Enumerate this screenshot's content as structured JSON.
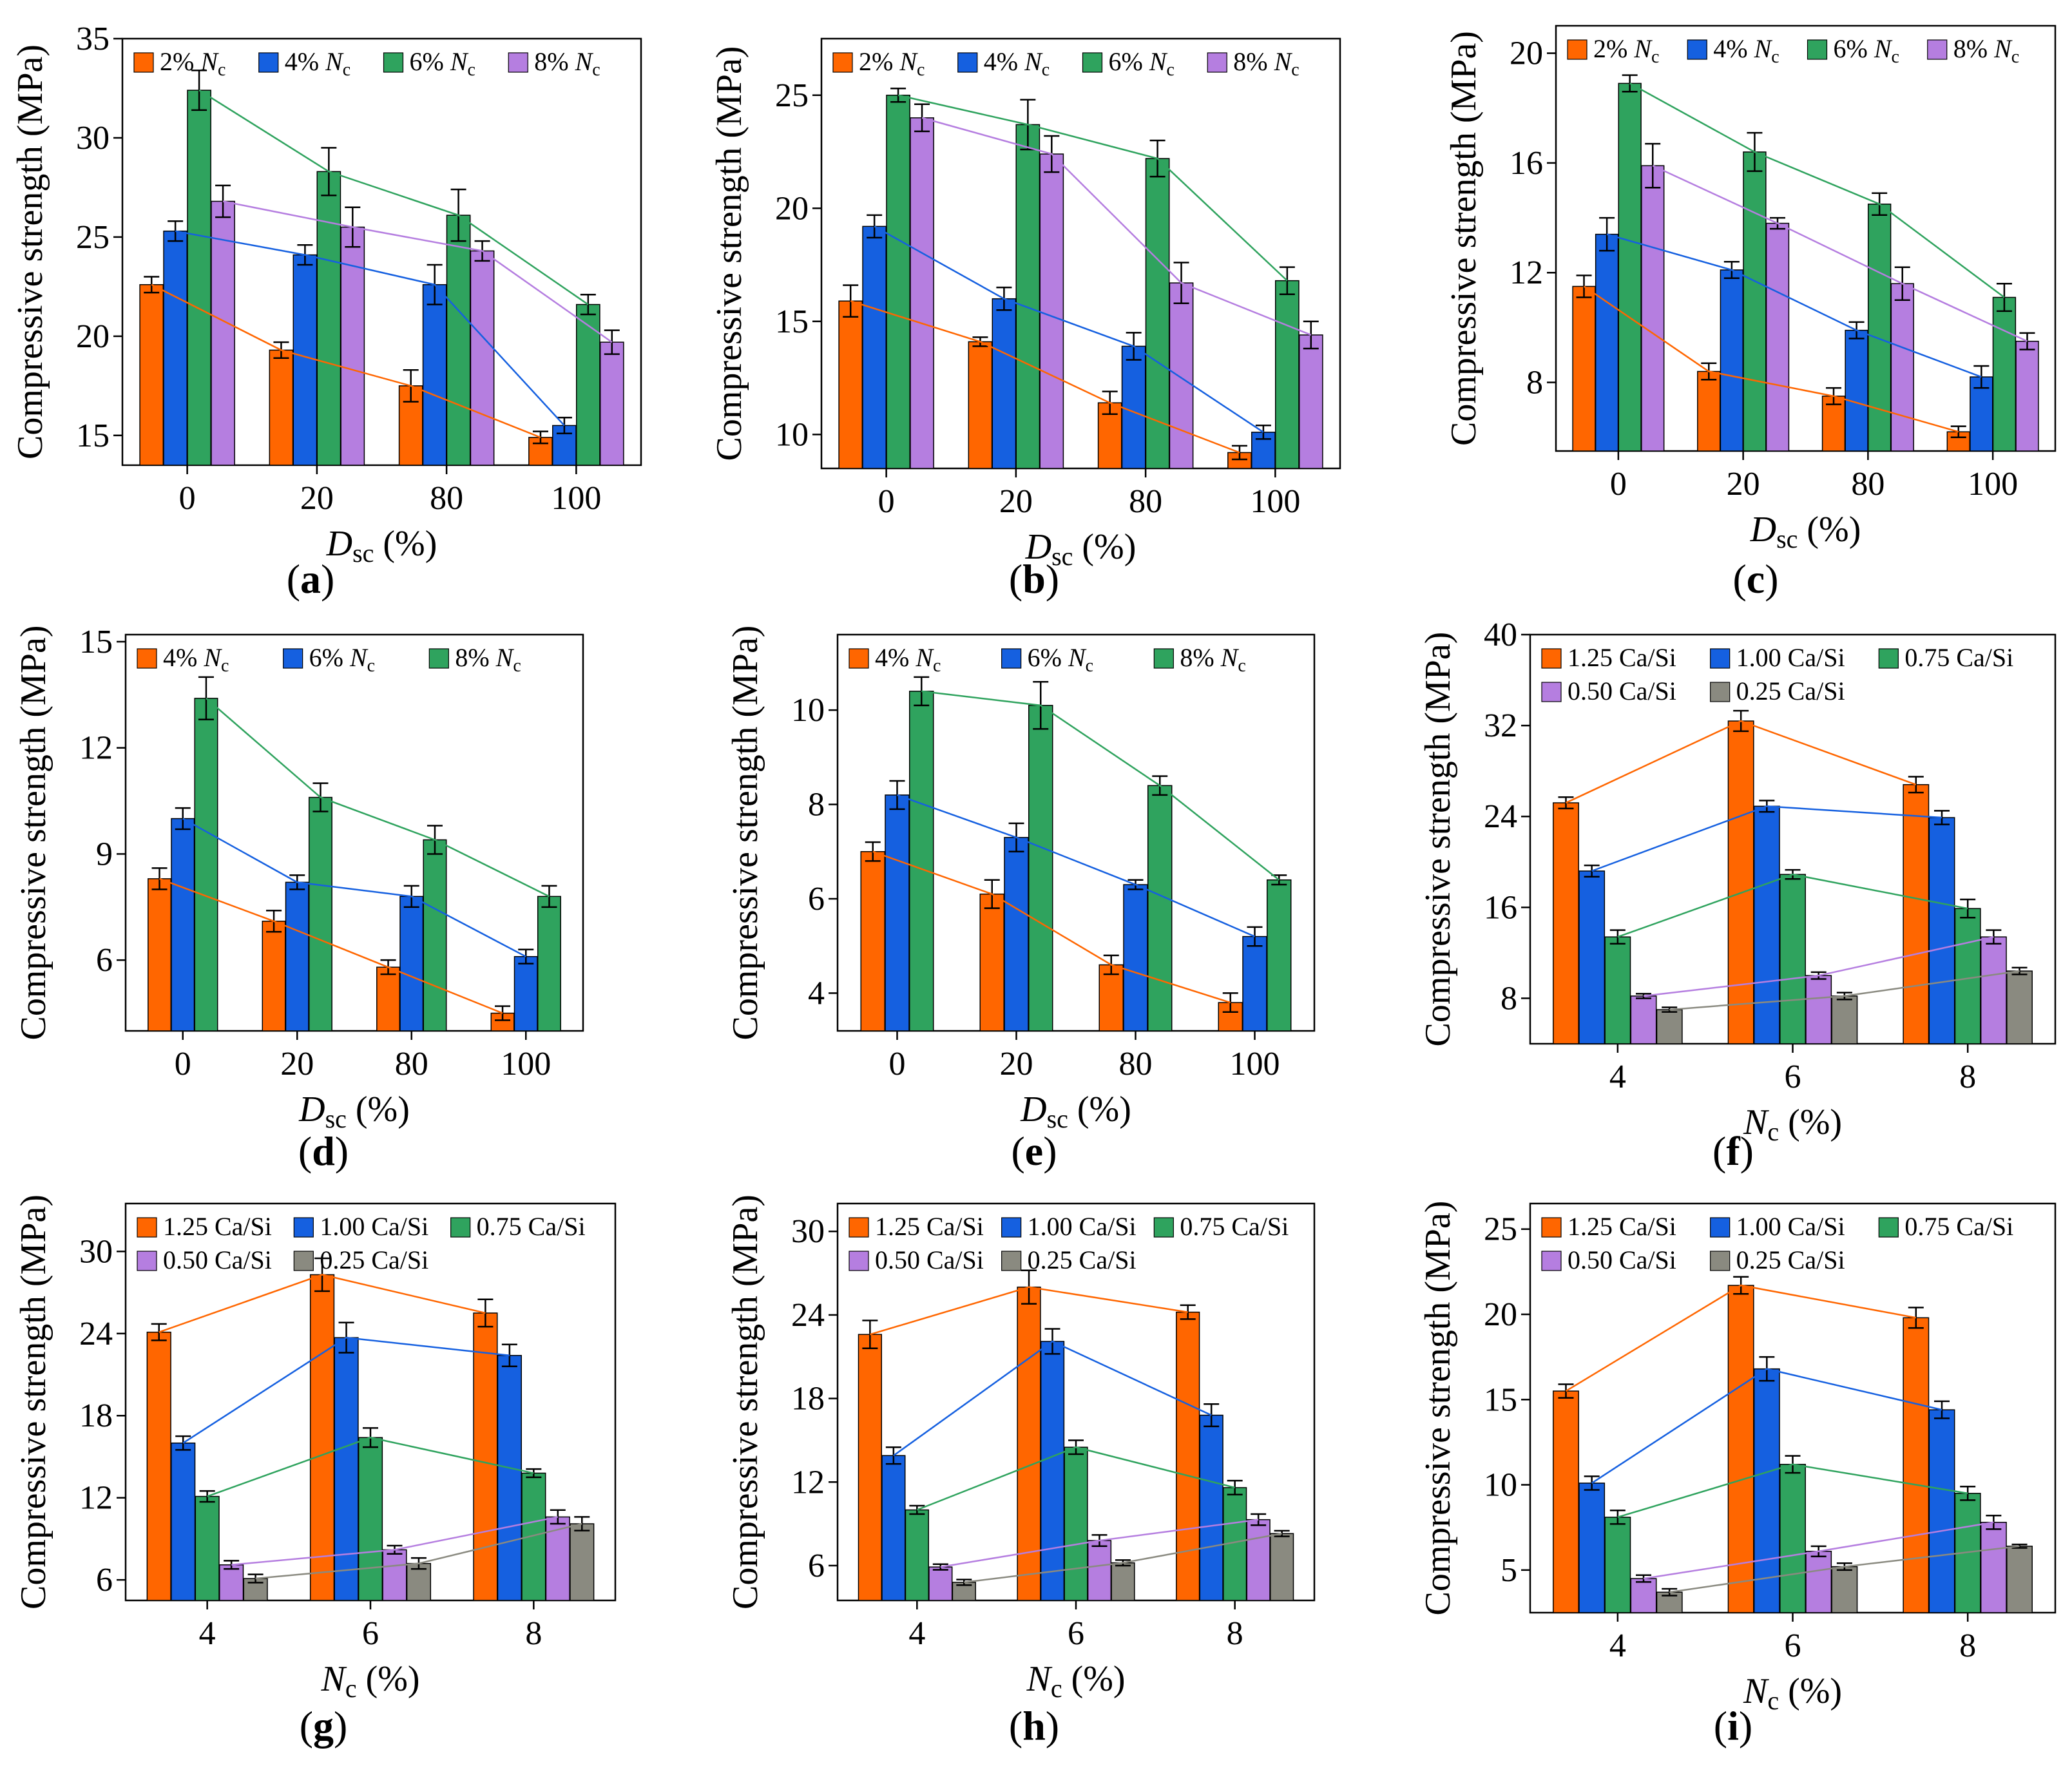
{
  "figure": {
    "panel_labels": [
      "(a)",
      "(b)",
      "(c)",
      "(d)",
      "(e)",
      "(f)",
      "(g)",
      "(h)",
      "(i)"
    ]
  },
  "colors": {
    "orange": "#ff6600",
    "blue": "#1560e0",
    "green": "#2fa35e",
    "purple": "#b57ee0",
    "gray": "#8a8a80"
  },
  "chart_data": [
    {
      "id": "a",
      "type": "bar",
      "ylabel": "Compressive strength (MPa)",
      "xlabel_main": "D",
      "xlabel_sub": "sc",
      "xlabel_unit": " (%)",
      "categories": [
        "0",
        "20",
        "80",
        "100"
      ],
      "ylim": [
        13.5,
        35
      ],
      "yticks": [
        "15",
        "20",
        "25",
        "30",
        "35"
      ],
      "ytick_values": [
        15,
        20,
        25,
        30,
        35
      ],
      "legend_ncol": 4,
      "series": [
        {
          "name": "2% Nc",
          "prefix": "2% ",
          "color": "orange",
          "values": [
            22.6,
            19.3,
            17.5,
            14.9
          ],
          "errors": [
            0.4,
            0.4,
            0.8,
            0.3
          ]
        },
        {
          "name": "4% Nc",
          "prefix": "4% ",
          "color": "blue",
          "values": [
            25.3,
            24.1,
            22.6,
            15.5
          ],
          "errors": [
            0.5,
            0.5,
            1.0,
            0.4
          ]
        },
        {
          "name": "6% Nc",
          "prefix": "6% ",
          "color": "green",
          "values": [
            32.4,
            28.3,
            26.1,
            21.6
          ],
          "errors": [
            1.0,
            1.2,
            1.3,
            0.5
          ]
        },
        {
          "name": "8% Nc",
          "prefix": "8% ",
          "color": "purple",
          "values": [
            26.8,
            25.5,
            24.3,
            19.7
          ],
          "errors": [
            0.8,
            1.0,
            0.5,
            0.6
          ]
        }
      ]
    },
    {
      "id": "b",
      "type": "bar",
      "ylabel": "Compressive strength (MPa)",
      "xlabel_main": "D",
      "xlabel_sub": "sc",
      "xlabel_unit": " (%)",
      "categories": [
        "0",
        "20",
        "80",
        "100"
      ],
      "ylim": [
        8.5,
        27.5
      ],
      "yticks": [
        "10",
        "15",
        "20",
        "25"
      ],
      "ytick_values": [
        10,
        15,
        20,
        25
      ],
      "legend_ncol": 4,
      "series": [
        {
          "name": "2% Nc",
          "prefix": "2% ",
          "color": "orange",
          "values": [
            15.9,
            14.1,
            11.4,
            9.2
          ],
          "errors": [
            0.7,
            0.2,
            0.5,
            0.3
          ]
        },
        {
          "name": "4% Nc",
          "prefix": "4% ",
          "color": "blue",
          "values": [
            19.2,
            16.0,
            13.9,
            10.1
          ],
          "errors": [
            0.5,
            0.5,
            0.6,
            0.3
          ]
        },
        {
          "name": "6% Nc",
          "prefix": "6% ",
          "color": "green",
          "values": [
            25.0,
            23.7,
            22.2,
            16.8
          ],
          "errors": [
            0.3,
            1.1,
            0.8,
            0.6
          ]
        },
        {
          "name": "8% Nc",
          "prefix": "8% ",
          "color": "purple",
          "values": [
            24.0,
            22.4,
            16.7,
            14.4
          ],
          "errors": [
            0.6,
            0.8,
            0.9,
            0.6
          ]
        }
      ]
    },
    {
      "id": "c",
      "type": "bar",
      "ylabel": "Compressive strength (MPa)",
      "xlabel_main": "D",
      "xlabel_sub": "sc",
      "xlabel_unit": " (%)",
      "categories": [
        "0",
        "20",
        "80",
        "100"
      ],
      "ylim": [
        5.5,
        21
      ],
      "yticks": [
        "8",
        "12",
        "16",
        "20"
      ],
      "ytick_values": [
        8,
        12,
        16,
        20
      ],
      "legend_ncol": 4,
      "series": [
        {
          "name": "2% Nc",
          "prefix": "2% ",
          "color": "orange",
          "values": [
            11.5,
            8.4,
            7.5,
            6.2
          ],
          "errors": [
            0.4,
            0.3,
            0.3,
            0.2
          ]
        },
        {
          "name": "4% Nc",
          "prefix": "4% ",
          "color": "blue",
          "values": [
            13.4,
            12.1,
            9.9,
            8.2
          ],
          "errors": [
            0.6,
            0.3,
            0.3,
            0.4
          ]
        },
        {
          "name": "6% Nc",
          "prefix": "6% ",
          "color": "green",
          "values": [
            18.9,
            16.4,
            14.5,
            11.1
          ],
          "errors": [
            0.3,
            0.7,
            0.4,
            0.5
          ]
        },
        {
          "name": "8% Nc",
          "prefix": "8% ",
          "color": "purple",
          "values": [
            15.9,
            13.8,
            11.6,
            9.5
          ],
          "errors": [
            0.8,
            0.2,
            0.6,
            0.3
          ]
        }
      ]
    },
    {
      "id": "d",
      "type": "bar",
      "ylabel": "Compressive strength (MPa)",
      "xlabel_main": "D",
      "xlabel_sub": "sc",
      "xlabel_unit": " (%)",
      "categories": [
        "0",
        "20",
        "80",
        "100"
      ],
      "ylim": [
        4,
        15.2
      ],
      "yticks": [
        "6",
        "9",
        "12",
        "15"
      ],
      "ytick_values": [
        6,
        9,
        12,
        15
      ],
      "legend_ncol": 3,
      "series": [
        {
          "name": "4% Nc",
          "prefix": "4% ",
          "color": "orange",
          "values": [
            8.3,
            7.1,
            5.8,
            4.5
          ],
          "errors": [
            0.3,
            0.3,
            0.2,
            0.2
          ]
        },
        {
          "name": "6% Nc",
          "prefix": "6% ",
          "color": "blue",
          "values": [
            10.0,
            8.2,
            7.8,
            6.1
          ],
          "errors": [
            0.3,
            0.2,
            0.3,
            0.2
          ]
        },
        {
          "name": "8% Nc",
          "prefix": "8% ",
          "color": "green",
          "values": [
            13.4,
            10.6,
            9.4,
            7.8
          ],
          "errors": [
            0.6,
            0.4,
            0.4,
            0.3
          ]
        }
      ]
    },
    {
      "id": "e",
      "type": "bar",
      "ylabel": "Compressive strength (MPa)",
      "xlabel_main": "D",
      "xlabel_sub": "sc",
      "xlabel_unit": " (%)",
      "categories": [
        "0",
        "20",
        "80",
        "100"
      ],
      "ylim": [
        3.2,
        11.6
      ],
      "yticks": [
        "4",
        "6",
        "8",
        "10"
      ],
      "ytick_values": [
        4,
        6,
        8,
        10
      ],
      "legend_ncol": 3,
      "series": [
        {
          "name": "4% Nc",
          "prefix": "4% ",
          "color": "orange",
          "values": [
            7.0,
            6.1,
            4.6,
            3.8
          ],
          "errors": [
            0.2,
            0.3,
            0.2,
            0.2
          ]
        },
        {
          "name": "6% Nc",
          "prefix": "6% ",
          "color": "blue",
          "values": [
            8.2,
            7.3,
            6.3,
            5.2
          ],
          "errors": [
            0.3,
            0.3,
            0.1,
            0.2
          ]
        },
        {
          "name": "8% Nc",
          "prefix": "8% ",
          "color": "green",
          "values": [
            10.4,
            10.1,
            8.4,
            6.4
          ],
          "errors": [
            0.3,
            0.5,
            0.2,
            0.1
          ]
        }
      ]
    },
    {
      "id": "f",
      "type": "bar",
      "ylabel": "Compressive strength (MPa)",
      "xlabel_main": "N",
      "xlabel_sub": "c",
      "xlabel_unit": " (%)",
      "categories": [
        "4",
        "6",
        "8"
      ],
      "ylim": [
        4,
        40
      ],
      "yticks": [
        "8",
        "16",
        "24",
        "32",
        "40"
      ],
      "ytick_values": [
        8,
        16,
        24,
        32,
        40
      ],
      "legend_ncol": 3,
      "series": [
        {
          "name": "1.25 Ca/Si",
          "color": "orange",
          "values": [
            25.2,
            32.4,
            26.8
          ],
          "errors": [
            0.5,
            0.9,
            0.7
          ]
        },
        {
          "name": "1.00 Ca/Si",
          "color": "blue",
          "values": [
            19.2,
            24.9,
            23.9
          ],
          "errors": [
            0.5,
            0.5,
            0.6
          ]
        },
        {
          "name": "0.75 Ca/Si",
          "color": "green",
          "values": [
            13.4,
            18.9,
            15.9
          ],
          "errors": [
            0.6,
            0.4,
            0.8
          ]
        },
        {
          "name": "0.50 Ca/Si",
          "color": "purple",
          "values": [
            8.2,
            10.0,
            13.4
          ],
          "errors": [
            0.2,
            0.3,
            0.6
          ]
        },
        {
          "name": "0.25 Ca/Si",
          "color": "gray",
          "values": [
            7.0,
            8.2,
            10.4
          ],
          "errors": [
            0.2,
            0.3,
            0.3
          ]
        }
      ]
    },
    {
      "id": "g",
      "type": "bar",
      "ylabel": "Compressive strength (MPa)",
      "xlabel_main": "N",
      "xlabel_sub": "c",
      "xlabel_unit": " (%)",
      "categories": [
        "4",
        "6",
        "8"
      ],
      "ylim": [
        4.5,
        33.5
      ],
      "yticks": [
        "6",
        "12",
        "18",
        "24",
        "30"
      ],
      "ytick_values": [
        6,
        12,
        18,
        24,
        30
      ],
      "legend_ncol": 3,
      "series": [
        {
          "name": "1.25 Ca/Si",
          "color": "orange",
          "values": [
            24.1,
            28.3,
            25.5
          ],
          "errors": [
            0.6,
            1.2,
            1.0
          ]
        },
        {
          "name": "1.00 Ca/Si",
          "color": "blue",
          "values": [
            16.0,
            23.7,
            22.4
          ],
          "errors": [
            0.5,
            1.1,
            0.8
          ]
        },
        {
          "name": "0.75 Ca/Si",
          "color": "green",
          "values": [
            12.1,
            16.4,
            13.8
          ],
          "errors": [
            0.4,
            0.7,
            0.3
          ]
        },
        {
          "name": "0.50 Ca/Si",
          "color": "purple",
          "values": [
            7.1,
            8.2,
            10.6
          ],
          "errors": [
            0.3,
            0.3,
            0.5
          ]
        },
        {
          "name": "0.25 Ca/Si",
          "color": "gray",
          "values": [
            6.1,
            7.2,
            10.1
          ],
          "errors": [
            0.3,
            0.4,
            0.5
          ]
        }
      ]
    },
    {
      "id": "h",
      "type": "bar",
      "ylabel": "Compressive strength (MPa)",
      "xlabel_main": "N",
      "xlabel_sub": "c",
      "xlabel_unit": " (%)",
      "categories": [
        "4",
        "6",
        "8"
      ],
      "ylim": [
        3.5,
        32
      ],
      "yticks": [
        "6",
        "12",
        "18",
        "24",
        "30"
      ],
      "ytick_values": [
        6,
        12,
        18,
        24,
        30
      ],
      "legend_ncol": 3,
      "series": [
        {
          "name": "1.25 Ca/Si",
          "color": "orange",
          "values": [
            22.6,
            26.0,
            24.2
          ],
          "errors": [
            1.0,
            1.2,
            0.5
          ]
        },
        {
          "name": "1.00 Ca/Si",
          "color": "blue",
          "values": [
            13.9,
            22.1,
            16.8
          ],
          "errors": [
            0.6,
            0.9,
            0.8
          ]
        },
        {
          "name": "0.75 Ca/Si",
          "color": "green",
          "values": [
            10.0,
            14.5,
            11.6
          ],
          "errors": [
            0.3,
            0.5,
            0.5
          ]
        },
        {
          "name": "0.50 Ca/Si",
          "color": "purple",
          "values": [
            5.9,
            7.8,
            9.3
          ],
          "errors": [
            0.2,
            0.4,
            0.4
          ]
        },
        {
          "name": "0.25 Ca/Si",
          "color": "gray",
          "values": [
            4.8,
            6.2,
            8.3
          ],
          "errors": [
            0.2,
            0.2,
            0.2
          ]
        }
      ]
    },
    {
      "id": "i",
      "type": "bar",
      "ylabel": "Compressive strength (MPa)",
      "xlabel_main": "N",
      "xlabel_sub": "c",
      "xlabel_unit": " (%)",
      "categories": [
        "4",
        "6",
        "8"
      ],
      "ylim": [
        2.5,
        26.5
      ],
      "yticks": [
        "5",
        "10",
        "15",
        "20",
        "25"
      ],
      "ytick_values": [
        5,
        10,
        15,
        20,
        25
      ],
      "legend_ncol": 3,
      "series": [
        {
          "name": "1.25 Ca/Si",
          "color": "orange",
          "values": [
            15.5,
            21.7,
            19.8
          ],
          "errors": [
            0.4,
            0.5,
            0.6
          ]
        },
        {
          "name": "1.00 Ca/Si",
          "color": "blue",
          "values": [
            10.1,
            16.8,
            14.4
          ],
          "errors": [
            0.4,
            0.7,
            0.5
          ]
        },
        {
          "name": "0.75 Ca/Si",
          "color": "green",
          "values": [
            8.1,
            11.2,
            9.5
          ],
          "errors": [
            0.4,
            0.5,
            0.4
          ]
        },
        {
          "name": "0.50 Ca/Si",
          "color": "purple",
          "values": [
            4.5,
            6.1,
            7.8
          ],
          "errors": [
            0.2,
            0.3,
            0.4
          ]
        },
        {
          "name": "0.25 Ca/Si",
          "color": "gray",
          "values": [
            3.7,
            5.2,
            6.4
          ],
          "errors": [
            0.2,
            0.2,
            0.1
          ]
        }
      ]
    }
  ]
}
